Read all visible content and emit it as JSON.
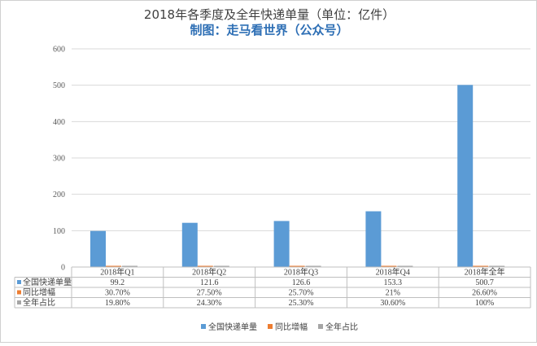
{
  "chart_data": {
    "type": "bar",
    "title": "2018年各季度及全年快递单量（单位：亿件）",
    "subtitle": "制图：走马看世界（公众号）",
    "categories": [
      "2018年Q1",
      "2018年Q2",
      "2018年Q3",
      "2018年Q4",
      "2018年全年"
    ],
    "ylim": [
      0,
      600
    ],
    "yticks": [
      0,
      100,
      200,
      300,
      400,
      500,
      600
    ],
    "grid": true,
    "legend_position": "bottom",
    "series": [
      {
        "name": "全国快递单量",
        "color": "#5b9bd5",
        "values": [
          99.2,
          121.6,
          126.6,
          153.3,
          500.7
        ],
        "labels": [
          "99.2",
          "121.6",
          "126.6",
          "153.3",
          "500.7"
        ]
      },
      {
        "name": "同比增幅",
        "color": "#ed7d31",
        "values": [
          0.307,
          0.275,
          0.257,
          0.21,
          0.266
        ],
        "labels": [
          "30.70%",
          "27.50%",
          "25.70%",
          "21%",
          "26.60%"
        ]
      },
      {
        "name": "全年占比",
        "color": "#a5a5a5",
        "values": [
          0.198,
          0.243,
          0.253,
          0.306,
          1.0
        ],
        "labels": [
          "19.80%",
          "24.30%",
          "25.30%",
          "30.60%",
          "100%"
        ]
      }
    ]
  }
}
